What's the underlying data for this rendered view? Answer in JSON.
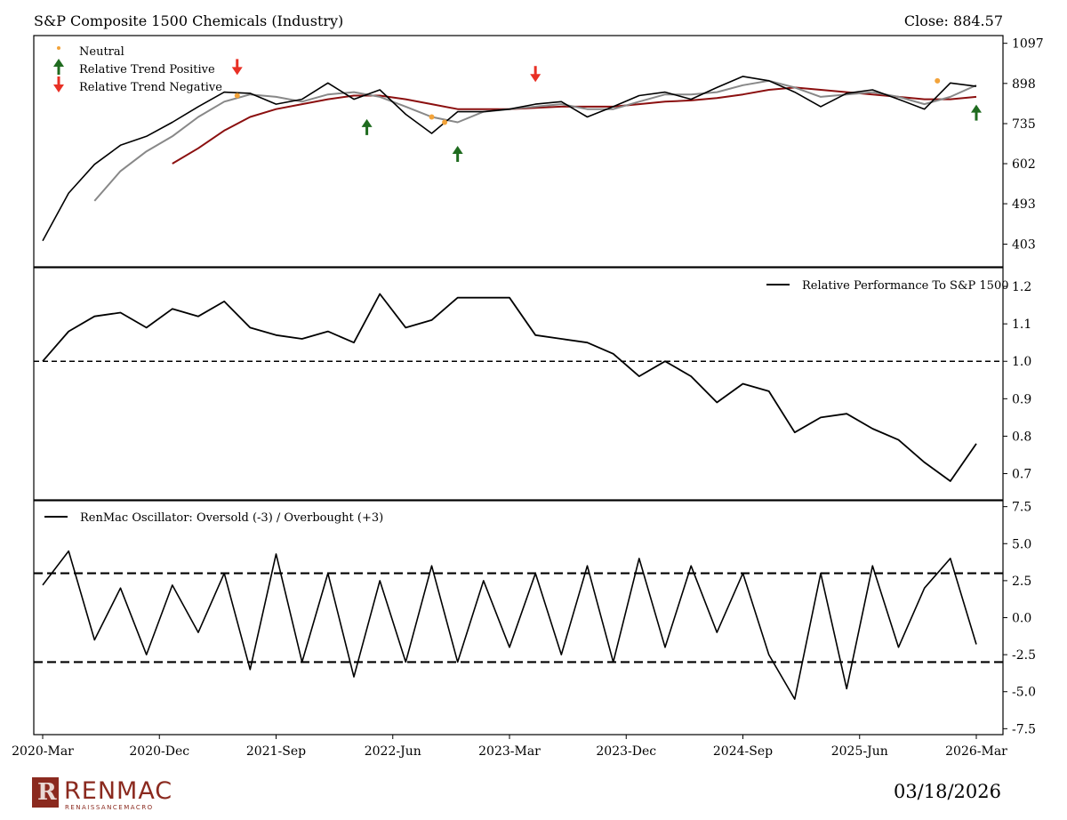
{
  "header": {
    "title": "S&P Composite 1500 Chemicals (Industry)",
    "close_label": "Close: 884.57"
  },
  "footer": {
    "logo_brand": "RENMAC",
    "logo_sub": "RENAISSANCEMACRO",
    "date": "03/18/2026"
  },
  "chart_data": [
    {
      "type": "line",
      "panel": "price",
      "y_scale": "log",
      "ylim": [
        360,
        1140
      ],
      "y_ticks": [
        1097,
        898,
        735,
        602,
        493,
        403
      ],
      "x_ticks": [
        "2020-Mar",
        "2020-Dec",
        "2021-Sep",
        "2022-Jun",
        "2023-Mar",
        "2023-Dec",
        "2024-Sep",
        "2025-Jun",
        "2026-Mar"
      ],
      "legend": [
        {
          "name": "Neutral",
          "marker": "dot",
          "color": "#f2a33a"
        },
        {
          "name": "Relative Trend Positive",
          "marker": "arrow-up",
          "color": "#1f6b1f"
        },
        {
          "name": "Relative Trend Negative",
          "marker": "arrow-down",
          "color": "#e83025"
        }
      ],
      "legend_position": "top-left",
      "x": [
        "2020-03",
        "2020-05",
        "2020-07",
        "2020-09",
        "2020-11",
        "2021-01",
        "2021-03",
        "2021-05",
        "2021-07",
        "2021-09",
        "2021-11",
        "2022-01",
        "2022-03",
        "2022-05",
        "2022-07",
        "2022-09",
        "2022-11",
        "2023-01",
        "2023-03",
        "2023-05",
        "2023-07",
        "2023-09",
        "2023-11",
        "2024-01",
        "2024-03",
        "2024-05",
        "2024-07",
        "2024-09",
        "2024-11",
        "2025-01",
        "2025-03",
        "2025-05",
        "2025-07",
        "2025-09",
        "2025-11",
        "2026-01",
        "2026-03"
      ],
      "series": [
        {
          "values": [
            410,
            520,
            600,
            660,
            690,
            740,
            800,
            860,
            855,
            810,
            830,
            900,
            830,
            870,
            770,
            700,
            780,
            780,
            790,
            810,
            820,
            760,
            800,
            845,
            860,
            830,
            880,
            930,
            910,
            860,
            800,
            855,
            870,
            830,
            790,
            900,
            885
          ]
        },
        {
          "values": [
            null,
            null,
            500,
            580,
            640,
            690,
            760,
            820,
            850,
            840,
            820,
            850,
            860,
            840,
            800,
            760,
            740,
            780,
            790,
            800,
            810,
            790,
            790,
            820,
            850,
            850,
            860,
            890,
            910,
            880,
            840,
            850,
            860,
            840,
            810,
            840,
            890
          ]
        },
        {
          "values": [
            null,
            null,
            null,
            null,
            null,
            602,
            650,
            710,
            760,
            790,
            810,
            830,
            845,
            845,
            830,
            810,
            790,
            790,
            790,
            795,
            800,
            800,
            800,
            810,
            820,
            825,
            835,
            850,
            870,
            880,
            870,
            860,
            850,
            840,
            830,
            830,
            840
          ]
        }
      ],
      "signals": [
        {
          "x": "2021-06",
          "type": "negative",
          "price": 880
        },
        {
          "x": "2022-04",
          "type": "positive",
          "price": 800
        },
        {
          "x": "2022-11",
          "type": "positive",
          "price": 700
        },
        {
          "x": "2023-05",
          "type": "negative",
          "price": 850
        },
        {
          "x": "2026-03",
          "type": "positive",
          "price": 860
        }
      ],
      "neutral_points": [
        {
          "x": "2021-06",
          "price": 845
        },
        {
          "x": "2022-09",
          "price": 760
        },
        {
          "x": "2022-10",
          "price": 740
        },
        {
          "x": "2025-12",
          "price": 910
        }
      ]
    },
    {
      "type": "line",
      "panel": "relative",
      "ylim": [
        0.63,
        1.25
      ],
      "y_ticks": [
        1.2,
        1.1,
        1.0,
        0.9,
        0.8,
        0.7
      ],
      "reference_line": 1.0,
      "legend": [
        {
          "name": "Relative Performance To S&P 1500"
        }
      ],
      "legend_position": "top-right",
      "x": [
        "2020-03",
        "2020-05",
        "2020-07",
        "2020-09",
        "2020-11",
        "2021-01",
        "2021-03",
        "2021-05",
        "2021-07",
        "2021-09",
        "2021-11",
        "2022-01",
        "2022-03",
        "2022-05",
        "2022-07",
        "2022-09",
        "2022-11",
        "2023-01",
        "2023-03",
        "2023-05",
        "2023-07",
        "2023-09",
        "2023-11",
        "2024-01",
        "2024-03",
        "2024-05",
        "2024-07",
        "2024-09",
        "2024-11",
        "2025-01",
        "2025-03",
        "2025-05",
        "2025-07",
        "2025-09",
        "2025-11",
        "2026-01",
        "2026-03"
      ],
      "series": [
        {
          "name": "Relative Performance To S&P 1500",
          "values": [
            1.0,
            1.08,
            1.12,
            1.13,
            1.09,
            1.14,
            1.12,
            1.16,
            1.09,
            1.07,
            1.06,
            1.08,
            1.05,
            1.18,
            1.09,
            1.11,
            1.17,
            1.17,
            1.17,
            1.07,
            1.06,
            1.05,
            1.02,
            0.96,
            1.0,
            0.96,
            0.89,
            0.94,
            0.92,
            0.81,
            0.85,
            0.86,
            0.82,
            0.79,
            0.73,
            0.68,
            0.78
          ]
        }
      ]
    },
    {
      "type": "line",
      "panel": "oscillator",
      "ylim": [
        -7.9,
        7.9
      ],
      "y_ticks": [
        7.5,
        5.0,
        2.5,
        0.0,
        -2.5,
        -5.0,
        -7.5
      ],
      "reference_lines": [
        3,
        -3
      ],
      "legend": [
        {
          "name": "RenMac Oscillator: Oversold (-3) / Overbought (+3)"
        }
      ],
      "legend_position": "top-left",
      "x": [
        "2020-03",
        "2020-05",
        "2020-07",
        "2020-09",
        "2020-11",
        "2021-01",
        "2021-03",
        "2021-05",
        "2021-07",
        "2021-09",
        "2021-11",
        "2022-01",
        "2022-03",
        "2022-05",
        "2022-07",
        "2022-09",
        "2022-11",
        "2023-01",
        "2023-03",
        "2023-05",
        "2023-07",
        "2023-09",
        "2023-11",
        "2024-01",
        "2024-03",
        "2024-05",
        "2024-07",
        "2024-09",
        "2024-11",
        "2025-01",
        "2025-03",
        "2025-05",
        "2025-07",
        "2025-09",
        "2025-11",
        "2026-01",
        "2026-03"
      ],
      "series": [
        {
          "name": "RenMac Oscillator: Oversold (-3) / Overbought (+3)",
          "values": [
            2.2,
            4.5,
            -1.5,
            2.0,
            -2.5,
            2.2,
            -1.0,
            3.0,
            -3.5,
            4.3,
            -3.0,
            3.0,
            -4.0,
            2.5,
            -3.0,
            3.5,
            -3.0,
            2.5,
            -2.0,
            3.0,
            -2.5,
            3.5,
            -3.0,
            4.0,
            -2.0,
            3.5,
            -1.0,
            3.0,
            -2.5,
            -5.5,
            3.0,
            -4.8,
            3.5,
            -2.0,
            2.0,
            4.0,
            -1.8
          ]
        }
      ]
    }
  ]
}
